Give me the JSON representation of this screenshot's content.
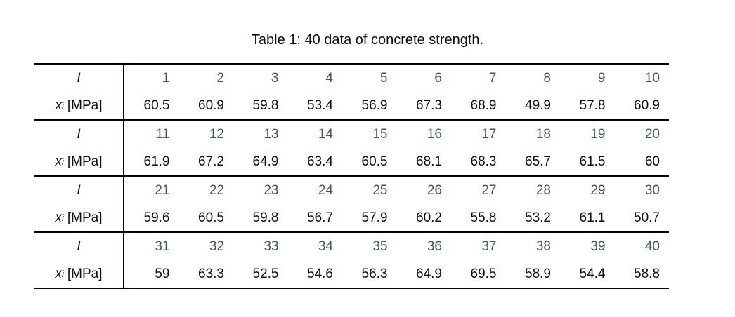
{
  "title": "Table 1: 40 data of concrete strength.",
  "table": {
    "index_label": "I",
    "value_label_var": "x",
    "value_label_sub": "i",
    "value_label_unit": "[MPa]",
    "index_color": "#44546A",
    "text_color": "#0d0d0d",
    "groups": [
      {
        "indices": [
          "1",
          "2",
          "3",
          "4",
          "5",
          "6",
          "7",
          "8",
          "9",
          "10"
        ],
        "values": [
          "60.5",
          "60.9",
          "59.8",
          "53.4",
          "56.9",
          "67.3",
          "68.9",
          "49.9",
          "57.8",
          "60.9"
        ]
      },
      {
        "indices": [
          "11",
          "12",
          "13",
          "14",
          "15",
          "16",
          "17",
          "18",
          "19",
          "20"
        ],
        "values": [
          "61.9",
          "67.2",
          "64.9",
          "63.4",
          "60.5",
          "68.1",
          "68.3",
          "65.7",
          "61.5",
          "60"
        ]
      },
      {
        "indices": [
          "21",
          "22",
          "23",
          "24",
          "25",
          "26",
          "27",
          "28",
          "29",
          "30"
        ],
        "values": [
          "59.6",
          "60.5",
          "59.8",
          "56.7",
          "57.9",
          "60.2",
          "55.8",
          "53.2",
          "61.1",
          "50.7"
        ]
      },
      {
        "indices": [
          "31",
          "32",
          "33",
          "34",
          "35",
          "36",
          "37",
          "38",
          "39",
          "40"
        ],
        "values": [
          "59",
          "63.3",
          "52.5",
          "54.6",
          "56.3",
          "64.9",
          "69.5",
          "58.9",
          "54.4",
          "58.8"
        ]
      }
    ]
  }
}
